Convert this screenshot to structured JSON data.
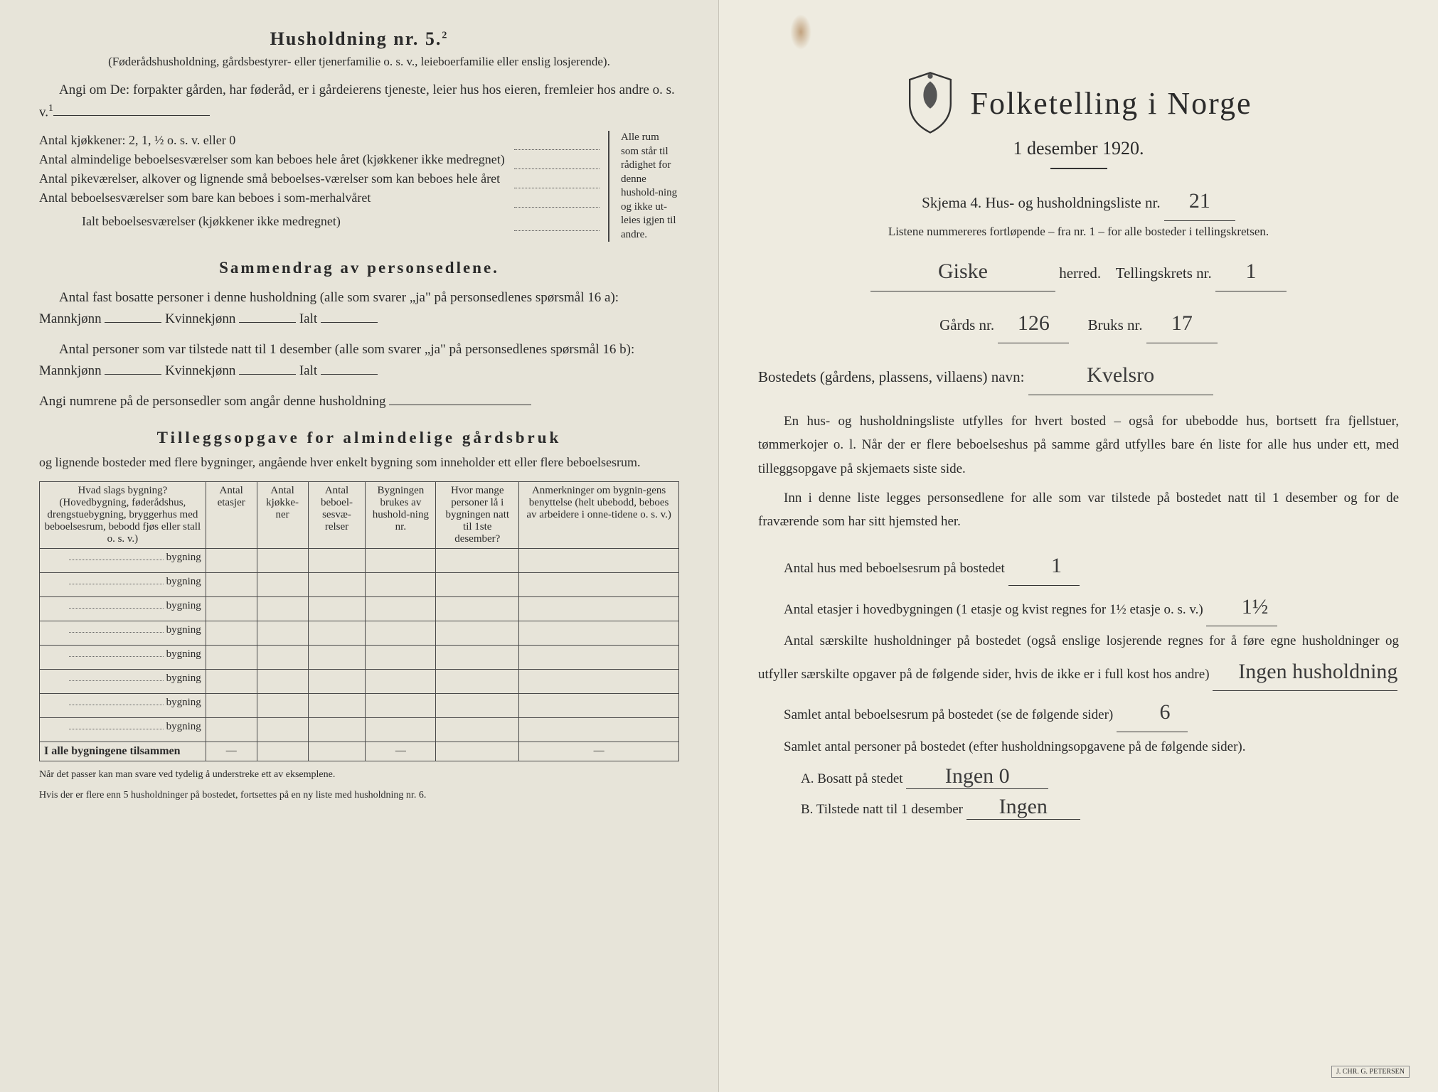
{
  "left": {
    "heading": "Husholdning nr. 5.",
    "heading_sup": "2",
    "sub1": "(Føderådshusholdning, gårdsbestyrer- eller tjenerfamilie o. s. v., leieboerfamilie eller enslig losjerende).",
    "angi_line": "Angi om De: forpakter gården, har føderåd, er i gårdeierens tjeneste, leier hus hos eieren, fremleier hos andre o. s. v.",
    "angi_sup": "1",
    "kitchens": "Antal kjøkkener: 2, 1, ½ o. s. v. eller 0",
    "rooms": [
      "Antal almindelige beboelsesværelser som kan beboes hele året (kjøkkener ikke medregnet)",
      "Antal pikeværelser, alkover og lignende små beboelses-værelser som kan beboes hele året",
      "Antal beboelsesværelser som bare kan beboes i som-merhalvåret"
    ],
    "rooms_total": "Ialt beboelsesværelser (kjøkkener ikke medregnet)",
    "brace_text": "Alle rum som står til rådighet for denne hushold-ning og ikke ut-leies igjen til andre.",
    "section2_h": "Sammendrag av personsedlene.",
    "s2_l1": "Antal fast bosatte personer i denne husholdning (alle som svarer „ja\" på personsedlenes spørsmål 16 a): Mannkjønn",
    "s2_kv": "Kvinnekjønn",
    "s2_ialt": "Ialt",
    "s2_l2": "Antal personer som var tilstede natt til 1 desember (alle som svarer „ja\" på personsedlenes spørsmål 16 b): Mannkjønn",
    "s2_l3": "Angi numrene på de personsedler som angår denne husholdning",
    "section3_h": "Tilleggsopgave for almindelige gårdsbruk",
    "s3_sub": "og lignende bosteder med flere bygninger, angående hver enkelt bygning som inneholder ett eller flere beboelsesrum.",
    "table": {
      "headers": [
        "Hvad slags bygning?\n(Hovedbygning, føderådshus, drengstuebygning, bryggerhus med beboelsesrum, bebodd fjøs eller stall o. s. v.)",
        "Antal etasjer",
        "Antal kjøkke-ner",
        "Antal beboel-sesvæ-relser",
        "Bygningen brukes av hushold-ning nr.",
        "Hvor mange personer lå i bygningen natt til 1ste desember?",
        "Anmerkninger om bygnin-gens benyttelse (helt ubebodd, beboes av arbeidere i onne-tidene o. s. v.)"
      ],
      "row_label": "bygning",
      "row_count": 8,
      "sum_label": "I alle bygningene tilsammen",
      "dash": "—"
    },
    "foot1": "Når det passer kan man svare ved tydelig å understreke ett av eksemplene.",
    "foot2": "Hvis der er flere enn 5 husholdninger på bostedet, fortsettes på en ny liste med husholdning nr. 6."
  },
  "right": {
    "title": "Folketelling i Norge",
    "date": "1 desember 1920.",
    "skjema": "Skjema 4.  Hus- og husholdningsliste nr.",
    "skjema_val": "21",
    "listene": "Listene nummereres fortløpende – fra nr. 1 – for alle bosteder i tellingskretsen.",
    "herred_val": "Giske",
    "herred_lbl": "herred.",
    "telling_lbl": "Tellingskrets nr.",
    "telling_val": "1",
    "gards_lbl": "Gårds nr.",
    "gards_val": "126",
    "bruks_lbl": "Bruks nr.",
    "bruks_val": "17",
    "bosted_lbl": "Bostedets (gårdens, plassens, villaens) navn:",
    "bosted_val": "Kvelsro",
    "body1": "En hus- og husholdningsliste utfylles for hvert bosted – også for ubebodde hus, bortsett fra fjellstuer, tømmerkojer o. l.  Når der er flere beboelseshus på samme gård utfylles bare én liste for alle hus under ett, med tilleggsopgave på skjemaets siste side.",
    "body2": "Inn i denne liste legges personsedlene for alle som var tilstede på bostedet natt til 1 desember og for de fraværende som har sitt hjemsted her.",
    "q1_lbl": "Antal hus med beboelsesrum på bostedet",
    "q1_val": "1",
    "q2_lbl": "Antal etasjer i hovedbygningen (1 etasje og kvist regnes for 1½ etasje o. s. v.)",
    "q2_val": "1½",
    "q3_lbl": "Antal særskilte husholdninger på bostedet (også enslige losjerende regnes for å føre egne husholdninger og utfyller særskilte opgaver på de følgende sider, hvis de ikke er i full kost hos andre)",
    "q3_val": "Ingen husholdning",
    "q4_lbl": "Samlet antal beboelsesrum på bostedet (se de følgende sider)",
    "q4_val": "6",
    "q5_lbl": "Samlet antal personer på bostedet (efter husholdningsopgavene på de følgende sider).",
    "qa_lbl": "A.  Bosatt på stedet",
    "qa_val": "Ingen 0",
    "qb_lbl": "B.  Tilstede natt til 1 desember",
    "qb_val": "Ingen",
    "printer": "J. CHR. G. PETERSEN"
  },
  "colors": {
    "paper_left": "#e7e4d9",
    "paper_right": "#eeebe0",
    "ink": "#2a2a2a",
    "hand": "#3a3a3a"
  }
}
